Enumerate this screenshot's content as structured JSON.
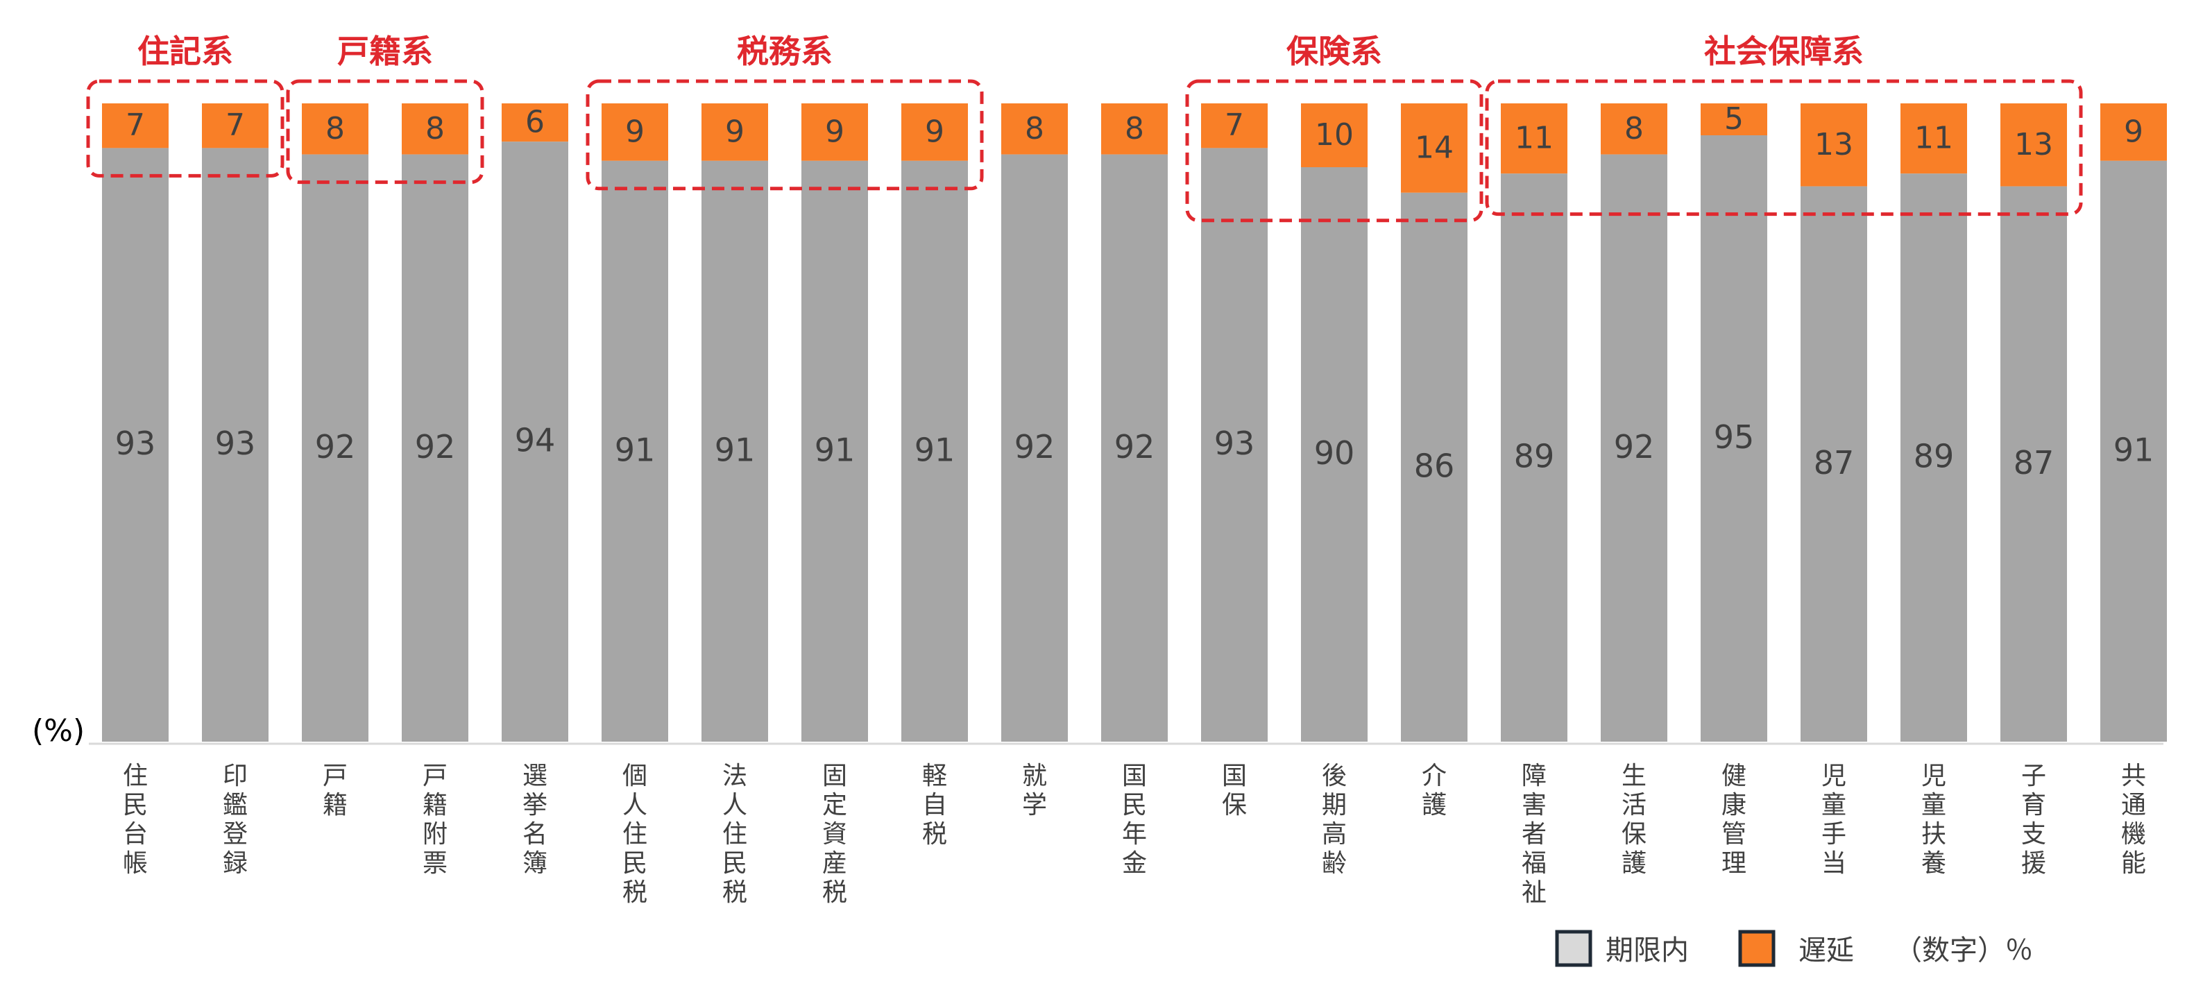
{
  "chart_data": {
    "type": "bar",
    "stacked": true,
    "unit_label": "(%)",
    "categories": [
      "住民台帳",
      "印鑑登録",
      "戸籍",
      "戸籍附票",
      "選挙名簿",
      "個人住民税",
      "法人住民税",
      "固定資産税",
      "軽自税",
      "就学",
      "国民年金",
      "国保",
      "後期高齢",
      "介護",
      "障害者福祉",
      "生活保護",
      "健康管理",
      "児童手当",
      "児童扶養",
      "子育支援",
      "共通機能"
    ],
    "series": [
      {
        "name": "期限内",
        "color": "#a6a6a6",
        "values": [
          93,
          93,
          92,
          92,
          94,
          91,
          91,
          91,
          91,
          92,
          92,
          93,
          90,
          86,
          89,
          92,
          95,
          87,
          89,
          87,
          91
        ]
      },
      {
        "name": "遅延",
        "color": "#f97f27",
        "values": [
          7,
          7,
          8,
          8,
          6,
          9,
          9,
          9,
          9,
          8,
          8,
          7,
          10,
          14,
          11,
          8,
          5,
          13,
          11,
          13,
          9
        ]
      }
    ],
    "ylim": [
      0,
      100
    ],
    "groups": [
      {
        "label": "住記系",
        "start": 0,
        "end": 1
      },
      {
        "label": "戸籍系",
        "start": 2,
        "end": 3
      },
      {
        "label": "税務系",
        "start": 5,
        "end": 8
      },
      {
        "label": "保険系",
        "start": 11,
        "end": 13
      },
      {
        "label": "社会保障系",
        "start": 14,
        "end": 19
      }
    ],
    "group_color": "#e0282e",
    "legend": {
      "position": "bottom-right",
      "items": [
        {
          "label": "期限内",
          "color": "#d9d9d9"
        },
        {
          "label": "遅延",
          "color": "#f97f27"
        }
      ],
      "note": "（数字）％"
    }
  }
}
